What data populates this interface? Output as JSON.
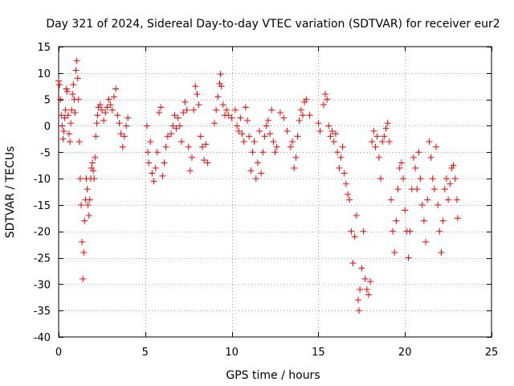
{
  "chart_data": {
    "type": "scatter",
    "title": "Day 321 of 2024, Sidereal Day-to-day VTEC variation (SDTVAR) for receiver eur2",
    "xlabel": "GPS time / hours",
    "ylabel": "SDTVAR / TECUs",
    "xlim": [
      0,
      25
    ],
    "ylim": [
      -40,
      15
    ],
    "xticks": [
      0,
      5,
      10,
      15,
      20,
      25
    ],
    "yticks": [
      -40,
      -35,
      -30,
      -25,
      -20,
      -15,
      -10,
      -5,
      0,
      5,
      10,
      15
    ],
    "grid": true,
    "marker": "plus",
    "color": "#ff0000",
    "series": [
      {
        "name": "SDTVAR",
        "points": [
          [
            0.0,
            8.5
          ],
          [
            0.05,
            7.8
          ],
          [
            0.1,
            5.0
          ],
          [
            0.15,
            2.0
          ],
          [
            0.2,
            0.0
          ],
          [
            0.25,
            -2.5
          ],
          [
            0.3,
            -1.0
          ],
          [
            0.35,
            1.5
          ],
          [
            0.4,
            3.0
          ],
          [
            0.45,
            7.0
          ],
          [
            0.5,
            6.5
          ],
          [
            0.55,
            2.0
          ],
          [
            0.6,
            -1.5
          ],
          [
            0.65,
            -3.0
          ],
          [
            0.7,
            0.5
          ],
          [
            0.75,
            3.0
          ],
          [
            0.8,
            6.0
          ],
          [
            0.85,
            7.8
          ],
          [
            0.9,
            5.0
          ],
          [
            0.95,
            2.5
          ],
          [
            1.0,
            10.5
          ],
          [
            1.05,
            12.3
          ],
          [
            1.1,
            9.0
          ],
          [
            1.15,
            5.0
          ],
          [
            1.2,
            -3.0
          ],
          [
            1.25,
            -10.0
          ],
          [
            1.3,
            -15.0
          ],
          [
            1.35,
            -22.0
          ],
          [
            1.4,
            -29.0
          ],
          [
            1.45,
            -24.0
          ],
          [
            1.5,
            -18.0
          ],
          [
            1.55,
            -14.0
          ],
          [
            1.6,
            -10.0
          ],
          [
            1.65,
            -12.0
          ],
          [
            1.7,
            -15.0
          ],
          [
            1.75,
            -17.0
          ],
          [
            1.8,
            -14.0
          ],
          [
            1.85,
            -10.0
          ],
          [
            1.9,
            -8.0
          ],
          [
            1.95,
            -7.0
          ],
          [
            2.0,
            -8.5
          ],
          [
            2.05,
            -10.0
          ],
          [
            2.1,
            -6.0
          ],
          [
            2.15,
            -2.0
          ],
          [
            2.2,
            0.5
          ],
          [
            2.25,
            2.0
          ],
          [
            2.3,
            3.5
          ],
          [
            2.4,
            4.0
          ],
          [
            2.5,
            3.0
          ],
          [
            2.6,
            1.0
          ],
          [
            2.7,
            2.5
          ],
          [
            2.8,
            3.5
          ],
          [
            2.9,
            5.0
          ],
          [
            3.0,
            4.0
          ],
          [
            3.1,
            3.0
          ],
          [
            3.2,
            5.5
          ],
          [
            3.3,
            7.0
          ],
          [
            3.4,
            2.0
          ],
          [
            3.5,
            0.5
          ],
          [
            3.6,
            -1.5
          ],
          [
            3.7,
            -4.0
          ],
          [
            3.8,
            -2.0
          ],
          [
            3.9,
            0.0
          ],
          [
            4.0,
            1.5
          ],
          [
            5.1,
            0.0
          ],
          [
            5.15,
            -5.0
          ],
          [
            5.2,
            -7.0
          ],
          [
            5.3,
            -3.0
          ],
          [
            5.4,
            -9.0
          ],
          [
            5.5,
            -10.5
          ],
          [
            5.6,
            -8.0
          ],
          [
            5.7,
            -5.0
          ],
          [
            5.8,
            2.5
          ],
          [
            5.9,
            3.5
          ],
          [
            6.0,
            -9.5
          ],
          [
            6.1,
            -7.0
          ],
          [
            6.2,
            -4.0
          ],
          [
            6.3,
            -2.0
          ],
          [
            6.5,
            -1.5
          ],
          [
            6.6,
            0.0
          ],
          [
            6.7,
            2.0
          ],
          [
            6.8,
            -0.5
          ],
          [
            6.9,
            1.5
          ],
          [
            7.0,
            0.0
          ],
          [
            7.1,
            -3.0
          ],
          [
            7.2,
            2.5
          ],
          [
            7.3,
            4.5
          ],
          [
            7.4,
            3.0
          ],
          [
            7.5,
            -4.0
          ],
          [
            7.6,
            -8.5
          ],
          [
            7.7,
            -6.0
          ],
          [
            7.8,
            3.0
          ],
          [
            7.9,
            7.5
          ],
          [
            8.0,
            6.0
          ],
          [
            8.1,
            4.0
          ],
          [
            8.2,
            -2.0
          ],
          [
            8.3,
            -4.0
          ],
          [
            8.4,
            -6.5
          ],
          [
            8.5,
            -3.5
          ],
          [
            8.6,
            -7.0
          ],
          [
            9.0,
            0.5
          ],
          [
            9.1,
            3.0
          ],
          [
            9.2,
            5.5
          ],
          [
            9.3,
            8.0
          ],
          [
            9.35,
            9.8
          ],
          [
            9.4,
            7.5
          ],
          [
            9.5,
            4.0
          ],
          [
            9.6,
            2.0
          ],
          [
            9.7,
            3.0
          ],
          [
            9.8,
            2.0
          ],
          [
            10.0,
            1.5
          ],
          [
            10.2,
            3.0
          ],
          [
            10.3,
            0.0
          ],
          [
            10.4,
            -1.0
          ],
          [
            10.5,
            1.5
          ],
          [
            10.6,
            -1.5
          ],
          [
            10.7,
            -3.0
          ],
          [
            10.8,
            3.5
          ],
          [
            10.9,
            1.0
          ],
          [
            11.0,
            -2.0
          ],
          [
            11.1,
            -8.5
          ],
          [
            11.2,
            -5.0
          ],
          [
            11.3,
            -3.0
          ],
          [
            11.4,
            -10.0
          ],
          [
            11.5,
            -7.0
          ],
          [
            11.6,
            -1.0
          ],
          [
            11.7,
            -9.0
          ],
          [
            11.8,
            -5.0
          ],
          [
            11.9,
            -2.0
          ],
          [
            12.0,
            0.0
          ],
          [
            12.1,
            1.0
          ],
          [
            12.2,
            -1.5
          ],
          [
            12.3,
            3.0
          ],
          [
            12.4,
            -3.0
          ],
          [
            12.5,
            -5.0
          ],
          [
            12.6,
            -4.0
          ],
          [
            12.8,
            2.5
          ],
          [
            13.0,
            1.5
          ],
          [
            13.2,
            -1.0
          ],
          [
            13.4,
            -4.0
          ],
          [
            13.5,
            -3.0
          ],
          [
            13.6,
            -8.0
          ],
          [
            13.7,
            -6.0
          ],
          [
            13.8,
            -2.0
          ],
          [
            13.9,
            1.0
          ],
          [
            14.0,
            3.0
          ],
          [
            14.1,
            2.0
          ],
          [
            14.2,
            4.5
          ],
          [
            14.3,
            5.0
          ],
          [
            14.5,
            2.0
          ],
          [
            15.0,
            0.5
          ],
          [
            15.1,
            -1.0
          ],
          [
            15.3,
            4.0
          ],
          [
            15.4,
            6.0
          ],
          [
            15.5,
            5.0
          ],
          [
            15.6,
            0.0
          ],
          [
            15.7,
            -2.0
          ],
          [
            15.8,
            -1.0
          ],
          [
            15.9,
            -3.0
          ],
          [
            16.0,
            -1.5
          ],
          [
            16.1,
            -5.0
          ],
          [
            16.2,
            -8.0
          ],
          [
            16.3,
            -6.0
          ],
          [
            16.4,
            -4.0
          ],
          [
            16.5,
            -9.0
          ],
          [
            16.6,
            -11.0
          ],
          [
            16.7,
            -13.0
          ],
          [
            16.8,
            -14.0
          ],
          [
            16.9,
            -20.0
          ],
          [
            17.0,
            -26.0
          ],
          [
            17.1,
            -21.0
          ],
          [
            17.2,
            -17.0
          ],
          [
            17.3,
            -33.0
          ],
          [
            17.35,
            -35.0
          ],
          [
            17.4,
            -31.0
          ],
          [
            17.5,
            -27.0
          ],
          [
            17.6,
            -20.0
          ],
          [
            17.7,
            -29.0
          ],
          [
            17.8,
            -31.0
          ],
          [
            17.9,
            -32.0
          ],
          [
            18.0,
            -29.5
          ],
          [
            18.1,
            -3.0
          ],
          [
            18.2,
            -1.0
          ],
          [
            18.3,
            -4.0
          ],
          [
            18.4,
            -2.0
          ],
          [
            18.5,
            -6.0
          ],
          [
            18.6,
            -10.0
          ],
          [
            18.7,
            -3.0
          ],
          [
            18.8,
            -2.0
          ],
          [
            18.9,
            -0.5
          ],
          [
            19.0,
            0.5
          ],
          [
            19.1,
            -3.0
          ],
          [
            19.2,
            -14.0
          ],
          [
            19.3,
            -20.0
          ],
          [
            19.4,
            -24.0
          ],
          [
            19.5,
            -18.0
          ],
          [
            19.6,
            -12.0
          ],
          [
            19.7,
            -8.0
          ],
          [
            19.8,
            -7.0
          ],
          [
            19.9,
            -10.0
          ],
          [
            20.0,
            -16.0
          ],
          [
            20.1,
            -20.0
          ],
          [
            20.2,
            -25.0
          ],
          [
            20.3,
            -20.0
          ],
          [
            20.4,
            -12.0
          ],
          [
            20.5,
            -6.0
          ],
          [
            20.6,
            -8.0
          ],
          [
            20.7,
            -12.0
          ],
          [
            20.8,
            -5.0
          ],
          [
            20.9,
            -10.0
          ],
          [
            21.0,
            -15.0
          ],
          [
            21.1,
            -18.0
          ],
          [
            21.2,
            -22.0
          ],
          [
            21.3,
            -14.0
          ],
          [
            21.4,
            -3.0
          ],
          [
            21.5,
            -6.0
          ],
          [
            21.6,
            -10.0
          ],
          [
            21.7,
            -12.0
          ],
          [
            21.8,
            -4.0
          ],
          [
            21.9,
            -15.0
          ],
          [
            22.0,
            -20.0
          ],
          [
            22.1,
            -24.0
          ],
          [
            22.2,
            -18.0
          ],
          [
            22.3,
            -12.0
          ],
          [
            22.4,
            -10.0
          ],
          [
            22.5,
            -14.0
          ],
          [
            22.6,
            -11.0
          ],
          [
            22.7,
            -8.0
          ],
          [
            22.8,
            -7.5
          ],
          [
            22.9,
            -10.0
          ],
          [
            23.0,
            -14.0
          ],
          [
            23.05,
            -17.5
          ]
        ]
      }
    ]
  }
}
